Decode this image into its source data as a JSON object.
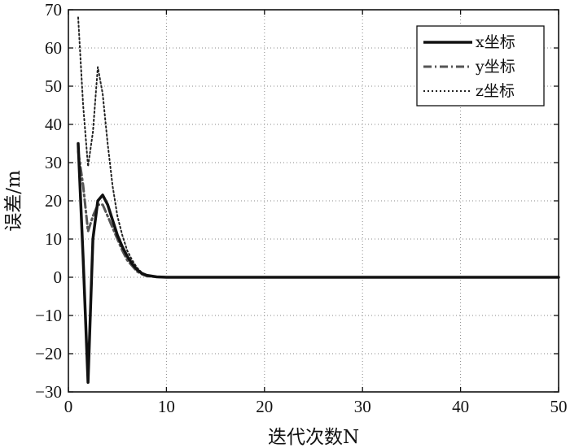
{
  "chart_data": {
    "type": "line",
    "title": "",
    "xlabel": "迭代次数N",
    "ylabel": "误差/m",
    "xlim": [
      0,
      50
    ],
    "ylim": [
      -30,
      70
    ],
    "xticks": [
      "0",
      "10",
      "20",
      "30",
      "40",
      "50"
    ],
    "yticks": [
      "70",
      "60",
      "50",
      "40",
      "30",
      "20",
      "10",
      "0",
      "−10",
      "−20",
      "−30"
    ],
    "grid": true,
    "legend_position": "top-right",
    "series": [
      {
        "name": "x坐标",
        "style": "solid",
        "color": "#111111",
        "x": [
          1,
          1.5,
          2,
          2.5,
          3,
          3.5,
          4,
          4.5,
          5,
          5.5,
          6,
          6.5,
          7,
          7.5,
          8,
          9,
          10,
          12,
          15,
          20,
          30,
          40,
          50
        ],
        "y": [
          35,
          5,
          -27.5,
          10,
          20,
          21.5,
          19,
          15,
          11,
          8,
          5.5,
          3.5,
          2,
          1,
          0.5,
          0.1,
          0,
          0,
          0,
          0,
          0,
          0,
          0
        ]
      },
      {
        "name": "y坐标",
        "style": "dashdot",
        "color": "#555555",
        "x": [
          1,
          1.5,
          2,
          2.5,
          3,
          3.5,
          4,
          4.5,
          5,
          5.5,
          6,
          6.5,
          7,
          7.5,
          8,
          9,
          10,
          12,
          15,
          20,
          30,
          40,
          50
        ],
        "y": [
          33,
          24,
          12,
          16,
          19,
          19,
          16,
          13,
          10,
          7,
          4.5,
          3,
          1.5,
          0.8,
          0.3,
          0.1,
          0,
          0,
          0,
          0,
          0,
          0,
          0
        ]
      },
      {
        "name": "z坐标",
        "style": "dotted",
        "color": "#222222",
        "x": [
          1,
          1.5,
          2,
          2.5,
          3,
          3.5,
          4,
          4.5,
          5,
          5.5,
          6,
          6.5,
          7,
          7.5,
          8,
          9,
          10,
          12,
          15,
          20,
          30,
          40,
          50
        ],
        "y": [
          68,
          45,
          29,
          38,
          55,
          48,
          35,
          24,
          16,
          11,
          7,
          4.5,
          2.5,
          1.2,
          0.5,
          0.1,
          0,
          0,
          0,
          0,
          0,
          0,
          0
        ]
      }
    ]
  }
}
